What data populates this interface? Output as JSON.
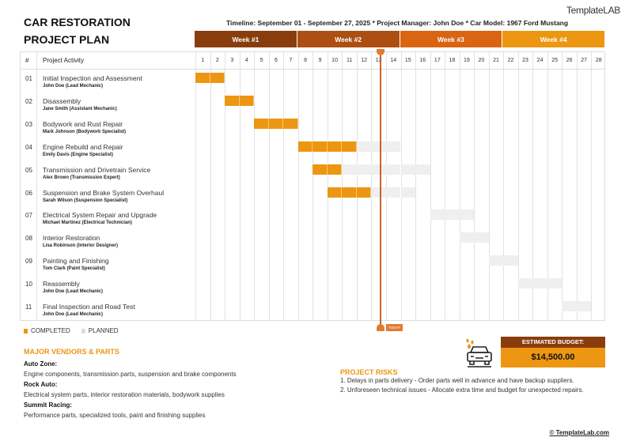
{
  "logo": "TemplateLAB",
  "title_line1": "CAR RESTORATION",
  "title_line2": "PROJECT PLAN",
  "info": "Timeline: September 01 - September 27, 2025   *   Project Manager: John Doe   *   Car Model: 1967 Ford Mustang",
  "weeks": [
    {
      "label": "Week #1",
      "color": "#8a3d0c"
    },
    {
      "label": "Week #2",
      "color": "#ad4f12"
    },
    {
      "label": "Week #3",
      "color": "#d96412"
    },
    {
      "label": "Week #4",
      "color": "#ec9611"
    }
  ],
  "header": {
    "num": "#",
    "activity": "Project Activity"
  },
  "days": [
    "1",
    "2",
    "3",
    "4",
    "5",
    "6",
    "7",
    "8",
    "9",
    "10",
    "11",
    "12",
    "13",
    "14",
    "15",
    "16",
    "17",
    "18",
    "19",
    "20",
    "21",
    "22",
    "23",
    "24",
    "25",
    "26",
    "27",
    "28"
  ],
  "activities": [
    {
      "num": "01",
      "title": "Initial Inspection and Assessment",
      "person": "John Doe (Lead Mechanic)",
      "completed": [
        1,
        2
      ],
      "planned": null
    },
    {
      "num": "02",
      "title": "Disassembly",
      "person": "Jane Smith (Assistant Mechanic)",
      "completed": [
        3,
        4
      ],
      "planned": null
    },
    {
      "num": "03",
      "title": "Bodywork and Rust Repair",
      "person": "Mark Johnson (Bodywork Specialist)",
      "completed": [
        5,
        7
      ],
      "planned": null
    },
    {
      "num": "04",
      "title": "Engine Rebuild and Repair",
      "person": "Emily Davis (Engine Specialist)",
      "completed": [
        8,
        11
      ],
      "planned": [
        12,
        14
      ]
    },
    {
      "num": "05",
      "title": "Transmission and Drivetrain Service",
      "person": "Alex Brown (Transmission Expert)",
      "completed": [
        9,
        10
      ],
      "planned": [
        11,
        16
      ]
    },
    {
      "num": "06",
      "title": "Suspension and Brake System Overhaul",
      "person": "Sarah Wilson (Suspension Specialist)",
      "completed": [
        10,
        12
      ],
      "planned": [
        13,
        15
      ]
    },
    {
      "num": "07",
      "title": "Electrical System Repair and Upgrade",
      "person": "Michael Martinez (Electrical Technician)",
      "completed": null,
      "planned": [
        17,
        19
      ]
    },
    {
      "num": "08",
      "title": "Interior Restoration",
      "person": "Lisa Robinson (Interior Designer)",
      "completed": null,
      "planned": [
        19,
        20
      ]
    },
    {
      "num": "09",
      "title": "Painting and Finishing",
      "person": "Tom Clark (Paint Specialist)",
      "completed": null,
      "planned": [
        21,
        22
      ]
    },
    {
      "num": "10",
      "title": "Reassembly",
      "person": "John Doe (Lead Mechanic)",
      "completed": null,
      "planned": [
        23,
        25
      ]
    },
    {
      "num": "11",
      "title": "Final Inspection and Road Test",
      "person": "John Doe (Lead Mechanic)",
      "completed": null,
      "planned": [
        26,
        27
      ]
    }
  ],
  "today": {
    "label": "TODAY",
    "day": 13.7
  },
  "legend": {
    "completed": "COMPLETED",
    "planned": "PLANNED"
  },
  "colors": {
    "completed": "#ec9611",
    "planned": "#efefef",
    "today": "#e07b31"
  },
  "vendors": {
    "heading": "MAJOR VENDORS & PARTS",
    "items": [
      {
        "name": "Auto Zone:",
        "text": "Engine components, transmission parts, suspension and brake components"
      },
      {
        "name": "Rock Auto:",
        "text": "Electrical system parts, interior restoration materials, bodywork supplies"
      },
      {
        "name": "Summit Racing:",
        "text": "Performance parts, specialized tools, paint and finishing supplies"
      }
    ]
  },
  "risks": {
    "heading": "PROJECT RISKS",
    "items": [
      "1. Delays in parts delivery - Order parts well in advance and have backup suppliers.",
      "2. Unforeseen technical issues - Allocate extra time and budget for unexpected repairs."
    ]
  },
  "budget": {
    "label": "ESTIMATED BUDGET:",
    "value": "$14,500.00",
    "icon": "car-wash-icon"
  },
  "footer": "© TemplateLab.com"
}
